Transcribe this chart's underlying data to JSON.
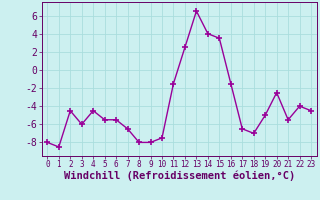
{
  "x": [
    0,
    1,
    2,
    3,
    4,
    5,
    6,
    7,
    8,
    9,
    10,
    11,
    12,
    13,
    14,
    15,
    16,
    17,
    18,
    19,
    20,
    21,
    22,
    23
  ],
  "y": [
    -8,
    -8.5,
    -4.5,
    -6,
    -4.5,
    -5.5,
    -5.5,
    -6.5,
    -8,
    -8,
    -7.5,
    -1.5,
    2.5,
    6.5,
    4,
    3.5,
    -1.5,
    -6.5,
    -7,
    -5,
    -2.5,
    -5.5,
    -4,
    -4.5
  ],
  "line_color": "#990099",
  "marker": "+",
  "markersize": 4,
  "markeredgewidth": 1.2,
  "linewidth": 1.0,
  "bg_color": "#ccf0f0",
  "grid_color": "#aadddd",
  "xlabel": "Windchill (Refroidissement éolien,°C)",
  "xlabel_color": "#660066",
  "tick_color": "#660066",
  "ylim": [
    -9.5,
    7.5
  ],
  "xlim": [
    -0.5,
    23.5
  ],
  "yticks": [
    -8,
    -6,
    -4,
    -2,
    0,
    2,
    4,
    6
  ],
  "xticks": [
    0,
    1,
    2,
    3,
    4,
    5,
    6,
    7,
    8,
    9,
    10,
    11,
    12,
    13,
    14,
    15,
    16,
    17,
    18,
    19,
    20,
    21,
    22,
    23
  ],
  "ytick_fontsize": 7,
  "xtick_fontsize": 5.5,
  "xlabel_fontsize": 7.5
}
